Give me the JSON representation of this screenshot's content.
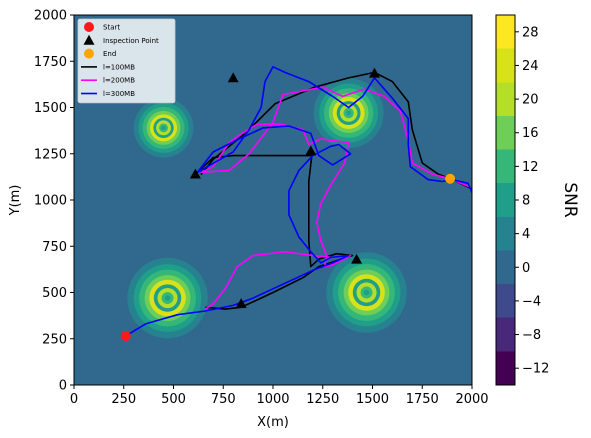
{
  "chart_data": {
    "type": "contour-map",
    "xlabel": "X(m)",
    "ylabel": "Y(m)",
    "xlim": [
      0,
      2000
    ],
    "ylim": [
      0,
      2000
    ],
    "xticks": [
      "0",
      "250",
      "500",
      "750",
      "1000",
      "1250",
      "1500",
      "1750",
      "2000"
    ],
    "yticks": [
      "0",
      "250",
      "500",
      "750",
      "1000",
      "1250",
      "1500",
      "1750",
      "2000"
    ],
    "colorbar": {
      "title": "SNR",
      "range": [
        -14,
        30
      ],
      "tick_values": [
        -12,
        -8,
        -4,
        0,
        4,
        8,
        12,
        16,
        20,
        24,
        28
      ],
      "tick_labels": [
        "−12",
        "−8",
        "−4",
        "0",
        "4",
        "8",
        "12",
        "16",
        "20",
        "24",
        "28"
      ],
      "levels": [
        -14,
        -10,
        -6,
        -2,
        2,
        6,
        10,
        14,
        18,
        22,
        26,
        30
      ],
      "colors": [
        "#440154",
        "#482878",
        "#3e4a89",
        "#31688e",
        "#26828e",
        "#1f9e89",
        "#35b779",
        "#6ece58",
        "#b5de2b",
        "#d8e219",
        "#fde725"
      ]
    },
    "background_color": "#31688e",
    "hotspots": [
      {
        "x": 470,
        "y": 470,
        "r": 230
      },
      {
        "x": 1470,
        "y": 500,
        "r": 230
      },
      {
        "x": 1380,
        "y": 1470,
        "r": 200
      },
      {
        "x": 450,
        "y": 1390,
        "r": 170
      }
    ],
    "legend": {
      "location": "top-left",
      "entries": [
        {
          "label": "Start",
          "marker": "circle",
          "color": "#ff1a1a"
        },
        {
          "label": "Inspection Point",
          "marker": "triangle",
          "color": "#000000"
        },
        {
          "label": "End",
          "marker": "circle",
          "color": "#ffa500"
        },
        {
          "label": "l=100MB",
          "marker": "line",
          "color": "#000000"
        },
        {
          "label": "l=200MB",
          "marker": "line",
          "color": "#ff00ff"
        },
        {
          "label": "l=300MB",
          "marker": "line",
          "color": "#0000ff"
        }
      ]
    },
    "start": {
      "x": 260,
      "y": 265
    },
    "end": {
      "x": 1890,
      "y": 1115
    },
    "inspection_points": [
      {
        "x": 610,
        "y": 1140
      },
      {
        "x": 800,
        "y": 1660
      },
      {
        "x": 1190,
        "y": 1265
      },
      {
        "x": 1510,
        "y": 1685
      },
      {
        "x": 1420,
        "y": 680
      },
      {
        "x": 840,
        "y": 440
      }
    ],
    "series": [
      {
        "name": "l=100MB",
        "color": "#000000",
        "points": [
          [
            660,
            420
          ],
          [
            760,
            410
          ],
          [
            840,
            420
          ],
          [
            1000,
            500
          ],
          [
            1150,
            580
          ],
          [
            1230,
            640
          ],
          [
            1340,
            680
          ],
          [
            1400,
            700
          ],
          [
            1320,
            710
          ],
          [
            1230,
            680
          ],
          [
            1190,
            640
          ],
          [
            1180,
            780
          ],
          [
            1180,
            1000
          ],
          [
            1180,
            1100
          ],
          [
            1195,
            1240
          ],
          [
            1050,
            1240
          ],
          [
            800,
            1240
          ],
          [
            700,
            1230
          ],
          [
            640,
            1170
          ],
          [
            640,
            1140
          ],
          [
            700,
            1220
          ],
          [
            860,
            1360
          ],
          [
            1010,
            1520
          ],
          [
            1210,
            1610
          ],
          [
            1380,
            1660
          ],
          [
            1510,
            1690
          ],
          [
            1600,
            1640
          ],
          [
            1680,
            1530
          ],
          [
            1700,
            1380
          ],
          [
            1750,
            1200
          ],
          [
            1830,
            1140
          ],
          [
            1890,
            1115
          ],
          [
            1980,
            1070
          ],
          [
            2000,
            1060
          ]
        ]
      },
      {
        "name": "l=200MB",
        "color": "#ff00ff",
        "points": [
          [
            660,
            410
          ],
          [
            700,
            440
          ],
          [
            760,
            520
          ],
          [
            820,
            640
          ],
          [
            900,
            700
          ],
          [
            1060,
            720
          ],
          [
            1200,
            700
          ],
          [
            1300,
            690
          ],
          [
            1390,
            700
          ],
          [
            1300,
            650
          ],
          [
            1260,
            640
          ],
          [
            1270,
            700
          ],
          [
            1240,
            780
          ],
          [
            1220,
            880
          ],
          [
            1240,
            980
          ],
          [
            1290,
            1080
          ],
          [
            1360,
            1200
          ],
          [
            1380,
            1310
          ],
          [
            1240,
            1330
          ],
          [
            1180,
            1300
          ],
          [
            1150,
            1380
          ],
          [
            1040,
            1410
          ],
          [
            920,
            1410
          ],
          [
            830,
            1350
          ],
          [
            780,
            1310
          ],
          [
            700,
            1180
          ],
          [
            640,
            1150
          ],
          [
            780,
            1160
          ],
          [
            880,
            1250
          ],
          [
            1000,
            1420
          ],
          [
            1050,
            1570
          ],
          [
            1150,
            1590
          ],
          [
            1250,
            1610
          ],
          [
            1350,
            1560
          ],
          [
            1460,
            1600
          ],
          [
            1560,
            1560
          ],
          [
            1640,
            1480
          ],
          [
            1680,
            1320
          ],
          [
            1700,
            1200
          ],
          [
            1800,
            1140
          ],
          [
            1890,
            1115
          ],
          [
            1990,
            1070
          ]
        ]
      },
      {
        "name": "l=300MB",
        "color": "#0000ff",
        "points": [
          [
            260,
            265
          ],
          [
            360,
            330
          ],
          [
            520,
            380
          ],
          [
            660,
            400
          ],
          [
            800,
            430
          ],
          [
            900,
            470
          ],
          [
            1000,
            520
          ],
          [
            1100,
            570
          ],
          [
            1200,
            620
          ],
          [
            1300,
            660
          ],
          [
            1380,
            700
          ],
          [
            1290,
            690
          ],
          [
            1240,
            660
          ],
          [
            1190,
            720
          ],
          [
            1130,
            800
          ],
          [
            1080,
            920
          ],
          [
            1080,
            1050
          ],
          [
            1130,
            1160
          ],
          [
            1200,
            1240
          ],
          [
            1290,
            1290
          ],
          [
            1330,
            1300
          ],
          [
            1390,
            1250
          ],
          [
            1300,
            1190
          ],
          [
            1230,
            1240
          ],
          [
            1190,
            1360
          ],
          [
            1080,
            1400
          ],
          [
            950,
            1390
          ],
          [
            830,
            1330
          ],
          [
            700,
            1260
          ],
          [
            620,
            1150
          ],
          [
            800,
            1260
          ],
          [
            880,
            1380
          ],
          [
            940,
            1500
          ],
          [
            960,
            1640
          ],
          [
            1000,
            1720
          ],
          [
            1060,
            1690
          ],
          [
            1180,
            1640
          ],
          [
            1300,
            1560
          ],
          [
            1380,
            1500
          ],
          [
            1450,
            1560
          ],
          [
            1510,
            1660
          ],
          [
            1600,
            1550
          ],
          [
            1680,
            1440
          ],
          [
            1680,
            1300
          ],
          [
            1690,
            1180
          ],
          [
            1780,
            1110
          ],
          [
            1850,
            1100
          ],
          [
            1900,
            1110
          ],
          [
            1980,
            1090
          ],
          [
            2000,
            1040
          ]
        ]
      }
    ]
  }
}
